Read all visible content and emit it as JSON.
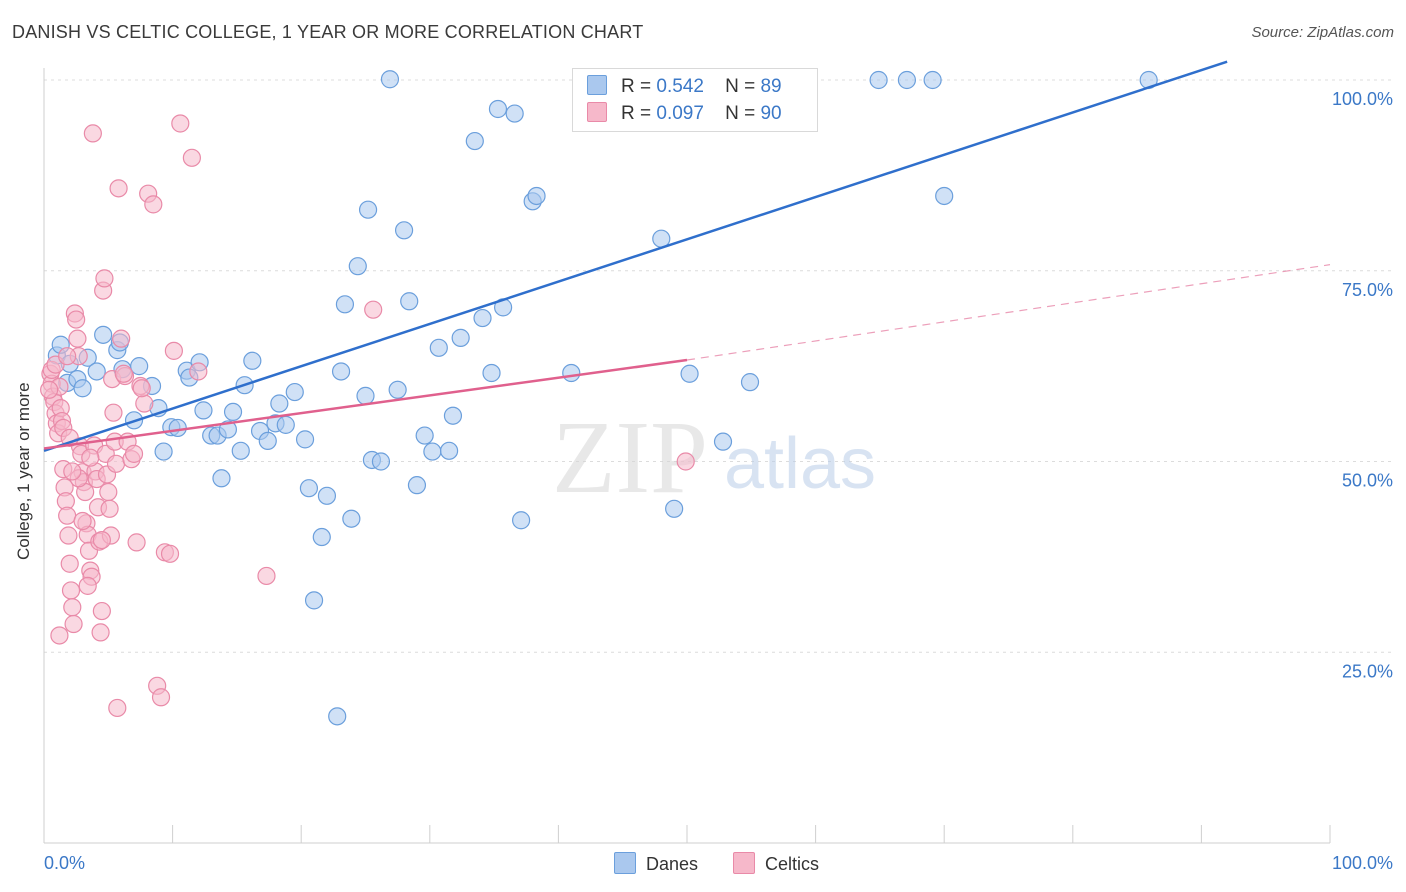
{
  "title": "DANISH VS CELTIC COLLEGE, 1 YEAR OR MORE CORRELATION CHART",
  "source": "Source: ZipAtlas.com",
  "watermark": {
    "zip": "ZIP",
    "atlas": "atlas"
  },
  "legend": {
    "rows": [
      {
        "r_label": "R =",
        "r_value": "0.542",
        "n_label": "N =",
        "n_value": "89"
      },
      {
        "r_label": "R =",
        "r_value": "0.097",
        "n_label": "N =",
        "n_value": "90"
      }
    ]
  },
  "bottom_legend": {
    "danes": "Danes",
    "celtics": "Celtics"
  },
  "colors": {
    "danes_fill": "#aac8ee",
    "danes_stroke": "#6b9fdc",
    "danes_line": "#2f6fcc",
    "celtics_fill": "#f6b8ca",
    "celtics_stroke": "#e98aa8",
    "celtics_line": "#e0608d",
    "axis_text": "#3b78c7",
    "grid": "#dcdcdc"
  },
  "chart_data": {
    "type": "scatter",
    "title": "DANISH VS CELTIC COLLEGE, 1 YEAR OR MORE CORRELATION CHART",
    "xlabel": "",
    "ylabel": "College, 1 year or more",
    "xlim": [
      0,
      100
    ],
    "ylim": [
      0,
      100
    ],
    "x_tick_labels": [
      "0.0%",
      "100.0%"
    ],
    "y_tick_labels": [
      "25.0%",
      "50.0%",
      "75.0%",
      "100.0%"
    ],
    "y_ticks": [
      25,
      50,
      75,
      100
    ],
    "grid": true,
    "legend_placement": "top-center",
    "series": [
      {
        "name": "Danes",
        "R": 0.542,
        "N": 89,
        "trend": {
          "x": [
            0,
            92
          ],
          "y": [
            51.4,
            102.4
          ]
        },
        "points": [
          [
            1.0,
            63.9
          ],
          [
            1.3,
            65.3
          ],
          [
            2.0,
            62.8
          ],
          [
            1.8,
            60.3
          ],
          [
            2.6,
            60.8
          ],
          [
            3.4,
            63.6
          ],
          [
            3.0,
            59.6
          ],
          [
            4.1,
            61.8
          ],
          [
            4.6,
            66.6
          ],
          [
            5.7,
            64.6
          ],
          [
            5.9,
            65.6
          ],
          [
            6.1,
            62.1
          ],
          [
            7.4,
            62.5
          ],
          [
            7.0,
            55.4
          ],
          [
            8.4,
            59.9
          ],
          [
            8.9,
            57.0
          ],
          [
            9.3,
            51.3
          ],
          [
            9.9,
            54.5
          ],
          [
            10.4,
            54.4
          ],
          [
            11.1,
            61.9
          ],
          [
            11.3,
            61.0
          ],
          [
            12.1,
            63.0
          ],
          [
            12.4,
            56.7
          ],
          [
            13.0,
            53.4
          ],
          [
            13.5,
            53.4
          ],
          [
            13.8,
            47.8
          ],
          [
            14.3,
            54.2
          ],
          [
            14.7,
            56.5
          ],
          [
            15.3,
            51.4
          ],
          [
            15.6,
            60.0
          ],
          [
            16.2,
            63.2
          ],
          [
            16.8,
            54.0
          ],
          [
            17.4,
            52.7
          ],
          [
            18.0,
            55.0
          ],
          [
            18.3,
            57.6
          ],
          [
            18.8,
            54.8
          ],
          [
            19.5,
            59.1
          ],
          [
            20.3,
            52.9
          ],
          [
            20.6,
            46.5
          ],
          [
            21.6,
            40.1
          ],
          [
            21.0,
            31.8
          ],
          [
            22.0,
            45.5
          ],
          [
            22.8,
            16.6
          ],
          [
            23.1,
            61.8
          ],
          [
            23.4,
            70.6
          ],
          [
            23.9,
            42.5
          ],
          [
            24.4,
            75.6
          ],
          [
            25.0,
            58.6
          ],
          [
            25.5,
            50.2
          ],
          [
            25.2,
            83.0
          ],
          [
            26.2,
            50.0
          ],
          [
            26.9,
            100.1
          ],
          [
            27.5,
            59.4
          ],
          [
            28.0,
            80.3
          ],
          [
            28.4,
            71.0
          ],
          [
            29.0,
            46.9
          ],
          [
            29.6,
            53.4
          ],
          [
            30.2,
            51.3
          ],
          [
            30.7,
            64.9
          ],
          [
            31.5,
            51.4
          ],
          [
            31.8,
            56.0
          ],
          [
            32.4,
            66.2
          ],
          [
            33.5,
            92.0
          ],
          [
            34.1,
            68.8
          ],
          [
            34.8,
            61.6
          ],
          [
            35.3,
            96.2
          ],
          [
            35.7,
            70.2
          ],
          [
            36.6,
            95.6
          ],
          [
            37.1,
            42.3
          ],
          [
            38.0,
            84.1
          ],
          [
            38.3,
            84.8
          ],
          [
            41.0,
            61.6
          ],
          [
            46.4,
            100.1
          ],
          [
            47.7,
            100.0
          ],
          [
            48.0,
            79.2
          ],
          [
            49.0,
            43.8
          ],
          [
            49.3,
            100.2
          ],
          [
            50.2,
            61.5
          ],
          [
            52.8,
            52.6
          ],
          [
            54.9,
            60.4
          ],
          [
            58.0,
            100.0
          ],
          [
            59.0,
            100.0
          ],
          [
            64.9,
            100.0
          ],
          [
            67.1,
            100.0
          ],
          [
            69.1,
            100.0
          ],
          [
            70.0,
            84.8
          ],
          [
            85.9,
            100.0
          ],
          [
            54.2,
            100.1
          ],
          [
            56.0,
            100.2
          ]
        ]
      },
      {
        "name": "Celtics",
        "R": 0.097,
        "N": 90,
        "trend": {
          "x": [
            0,
            50
          ],
          "y": [
            51.7,
            63.3
          ]
        },
        "trend_extended": {
          "x": [
            50,
            100
          ],
          "y": [
            63.3,
            75.8
          ]
        },
        "points": [
          [
            0.5,
            61.5
          ],
          [
            0.6,
            60.2
          ],
          [
            0.7,
            58.5
          ],
          [
            0.8,
            57.8
          ],
          [
            0.9,
            56.3
          ],
          [
            1.0,
            55.0
          ],
          [
            1.1,
            53.7
          ],
          [
            1.2,
            59.8
          ],
          [
            1.3,
            57.0
          ],
          [
            0.6,
            62.0
          ],
          [
            1.4,
            55.3
          ],
          [
            1.5,
            49.0
          ],
          [
            1.6,
            46.6
          ],
          [
            1.7,
            44.8
          ],
          [
            1.8,
            42.9
          ],
          [
            1.9,
            40.3
          ],
          [
            2.0,
            36.6
          ],
          [
            2.1,
            33.1
          ],
          [
            2.2,
            30.9
          ],
          [
            2.3,
            28.7
          ],
          [
            2.4,
            69.4
          ],
          [
            2.5,
            68.6
          ],
          [
            2.6,
            66.1
          ],
          [
            2.7,
            63.8
          ],
          [
            2.8,
            52.0
          ],
          [
            2.9,
            51.0
          ],
          [
            3.0,
            48.6
          ],
          [
            3.1,
            47.3
          ],
          [
            3.2,
            46.0
          ],
          [
            3.3,
            41.9
          ],
          [
            3.4,
            40.4
          ],
          [
            3.5,
            38.3
          ],
          [
            3.6,
            35.7
          ],
          [
            3.7,
            34.9
          ],
          [
            3.8,
            93.0
          ],
          [
            3.9,
            52.1
          ],
          [
            4.0,
            48.7
          ],
          [
            4.1,
            47.7
          ],
          [
            4.2,
            44.0
          ],
          [
            4.3,
            39.5
          ],
          [
            4.4,
            27.6
          ],
          [
            4.5,
            30.4
          ],
          [
            4.6,
            72.4
          ],
          [
            4.7,
            74.0
          ],
          [
            4.8,
            51.0
          ],
          [
            4.9,
            48.3
          ],
          [
            5.0,
            46.0
          ],
          [
            5.1,
            43.8
          ],
          [
            5.2,
            40.3
          ],
          [
            5.3,
            60.8
          ],
          [
            5.4,
            56.4
          ],
          [
            5.5,
            52.6
          ],
          [
            5.6,
            49.7
          ],
          [
            5.7,
            17.7
          ],
          [
            5.8,
            85.8
          ],
          [
            6.0,
            66.1
          ],
          [
            6.3,
            61.2
          ],
          [
            6.5,
            52.6
          ],
          [
            6.8,
            50.3
          ],
          [
            7.0,
            51.0
          ],
          [
            7.2,
            39.4
          ],
          [
            7.5,
            59.9
          ],
          [
            7.8,
            57.6
          ],
          [
            8.1,
            85.1
          ],
          [
            8.5,
            83.7
          ],
          [
            8.8,
            20.6
          ],
          [
            9.1,
            19.1
          ],
          [
            9.4,
            38.1
          ],
          [
            9.8,
            37.9
          ],
          [
            10.1,
            64.5
          ],
          [
            10.6,
            94.3
          ],
          [
            11.5,
            89.8
          ],
          [
            12.0,
            61.8
          ],
          [
            17.3,
            35.0
          ],
          [
            25.6,
            69.9
          ],
          [
            1.5,
            54.4
          ],
          [
            2.0,
            53.1
          ],
          [
            2.7,
            47.8
          ],
          [
            3.0,
            42.2
          ],
          [
            3.4,
            33.7
          ],
          [
            49.9,
            50.0
          ],
          [
            0.4,
            59.4
          ],
          [
            0.9,
            62.7
          ],
          [
            1.2,
            27.2
          ],
          [
            6.2,
            61.5
          ],
          [
            7.6,
            59.6
          ],
          [
            3.6,
            50.5
          ],
          [
            4.5,
            39.7
          ],
          [
            2.2,
            48.7
          ],
          [
            1.8,
            63.8
          ]
        ]
      }
    ]
  }
}
